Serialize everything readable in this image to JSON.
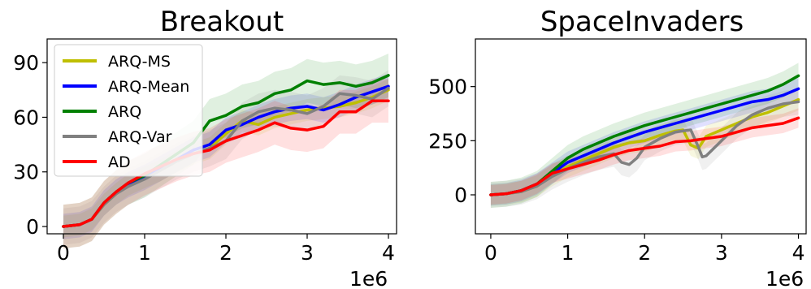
{
  "chart_data": [
    {
      "type": "line",
      "title": "Breakout",
      "xlabel": "",
      "ylabel": "",
      "x_scale_label": "1e6",
      "x_ticks": [
        "0",
        "1",
        "2",
        "3",
        "4"
      ],
      "y_ticks": [
        "0",
        "30",
        "60",
        "90"
      ],
      "xlim": [
        -0.2,
        4.1
      ],
      "ylim": [
        -4,
        103
      ],
      "grid": false,
      "legend": {
        "placement": "upper-left"
      },
      "series": [
        {
          "name": "ARQ-MS",
          "color": "#bfbf00",
          "shade": 6,
          "x": [
            0,
            0.2,
            0.35,
            0.5,
            0.65,
            0.8,
            1.0,
            1.2,
            1.4,
            1.6,
            1.8,
            2.0,
            2.2,
            2.4,
            2.6,
            2.8,
            3.0,
            3.2,
            3.4,
            3.6,
            3.8,
            4.0
          ],
          "y": [
            0,
            1,
            4,
            12,
            18,
            23,
            27,
            31,
            36,
            40,
            43,
            51,
            58,
            56,
            60,
            62,
            64,
            65,
            66,
            68,
            71,
            75
          ]
        },
        {
          "name": "ARQ-Mean",
          "color": "#0000ff",
          "shade": 7,
          "x": [
            0,
            0.2,
            0.35,
            0.5,
            0.65,
            0.8,
            1.0,
            1.2,
            1.4,
            1.6,
            1.8,
            2.0,
            2.2,
            2.4,
            2.6,
            2.8,
            3.0,
            3.2,
            3.4,
            3.6,
            3.8,
            4.0
          ],
          "y": [
            0,
            1,
            4,
            13,
            19,
            23,
            27,
            32,
            37,
            42,
            45,
            53,
            56,
            60,
            63,
            65,
            66,
            64,
            67,
            71,
            74,
            77
          ]
        },
        {
          "name": "ARQ",
          "color": "#008000",
          "shade": 12,
          "x": [
            0,
            0.2,
            0.35,
            0.5,
            0.65,
            0.8,
            1.0,
            1.2,
            1.4,
            1.6,
            1.8,
            2.0,
            2.2,
            2.4,
            2.6,
            2.8,
            3.0,
            3.2,
            3.4,
            3.6,
            3.8,
            4.0
          ],
          "y": [
            0,
            1,
            4,
            13,
            19,
            24,
            28,
            34,
            40,
            46,
            58,
            61,
            66,
            68,
            73,
            75,
            80,
            78,
            79,
            77,
            79,
            83
          ]
        },
        {
          "name": "ARQ-Var",
          "color": "#808080",
          "shade": 10,
          "x": [
            0,
            0.2,
            0.35,
            0.5,
            0.65,
            0.8,
            1.0,
            1.2,
            1.4,
            1.6,
            1.8,
            2.0,
            2.2,
            2.4,
            2.6,
            2.8,
            3.0,
            3.2,
            3.4,
            3.6,
            3.8,
            4.0
          ],
          "y": [
            0,
            1,
            4,
            12,
            18,
            22,
            26,
            31,
            36,
            40,
            43,
            47,
            58,
            63,
            65,
            64,
            62,
            66,
            73,
            72,
            70,
            76
          ]
        },
        {
          "name": "AD",
          "color": "#ff0000",
          "shade": 12,
          "x": [
            0,
            0.2,
            0.35,
            0.5,
            0.65,
            0.8,
            1.0,
            1.2,
            1.4,
            1.6,
            1.8,
            2.0,
            2.2,
            2.4,
            2.6,
            2.8,
            3.0,
            3.2,
            3.4,
            3.6,
            3.8,
            4.0
          ],
          "y": [
            0,
            1,
            4,
            13,
            19,
            24,
            29,
            33,
            37,
            40,
            42,
            47,
            50,
            53,
            57,
            54,
            53,
            55,
            63,
            63,
            69,
            69
          ]
        }
      ]
    },
    {
      "type": "line",
      "title": "SpaceInvaders",
      "xlabel": "",
      "ylabel": "",
      "x_scale_label": "1e6",
      "x_ticks": [
        "0",
        "1",
        "2",
        "3",
        "4"
      ],
      "y_ticks": [
        "0",
        "250",
        "500"
      ],
      "xlim": [
        -0.2,
        4.1
      ],
      "ylim": [
        -180,
        720
      ],
      "grid": false,
      "legend": null,
      "series": [
        {
          "name": "ARQ-MS",
          "color": "#bfbf00",
          "shade": 50,
          "x": [
            0,
            0.2,
            0.4,
            0.6,
            0.8,
            1.0,
            1.2,
            1.4,
            1.6,
            1.8,
            2.0,
            2.2,
            2.4,
            2.5,
            2.6,
            2.7,
            2.8,
            3.0,
            3.2,
            3.4,
            3.6,
            3.8,
            4.0
          ],
          "y": [
            0,
            5,
            15,
            40,
            90,
            130,
            160,
            190,
            220,
            240,
            250,
            275,
            295,
            300,
            230,
            215,
            270,
            300,
            330,
            360,
            380,
            410,
            440
          ]
        },
        {
          "name": "ARQ-Mean",
          "color": "#0000ff",
          "shade": 50,
          "x": [
            0,
            0.2,
            0.4,
            0.6,
            0.8,
            1.0,
            1.2,
            1.4,
            1.6,
            1.8,
            2.0,
            2.2,
            2.4,
            2.6,
            2.8,
            3.0,
            3.2,
            3.4,
            3.6,
            3.8,
            4.0
          ],
          "y": [
            0,
            5,
            20,
            50,
            100,
            150,
            180,
            210,
            240,
            265,
            290,
            310,
            330,
            350,
            370,
            390,
            410,
            430,
            440,
            460,
            490
          ]
        },
        {
          "name": "ARQ",
          "color": "#008000",
          "shade": 60,
          "x": [
            0,
            0.2,
            0.4,
            0.6,
            0.8,
            1.0,
            1.2,
            1.4,
            1.6,
            1.8,
            2.0,
            2.2,
            2.4,
            2.6,
            2.8,
            3.0,
            3.2,
            3.4,
            3.6,
            3.8,
            4.0
          ],
          "y": [
            0,
            5,
            20,
            50,
            110,
            170,
            210,
            240,
            270,
            295,
            320,
            340,
            360,
            380,
            400,
            420,
            440,
            460,
            480,
            510,
            550
          ]
        },
        {
          "name": "ARQ-Var",
          "color": "#808080",
          "shade": 60,
          "x": [
            0,
            0.2,
            0.4,
            0.6,
            0.8,
            1.0,
            1.2,
            1.4,
            1.6,
            1.7,
            1.8,
            1.9,
            2.0,
            2.2,
            2.4,
            2.6,
            2.7,
            2.75,
            2.8,
            3.0,
            3.2,
            3.4,
            3.6,
            3.8,
            4.0
          ],
          "y": [
            0,
            5,
            15,
            40,
            85,
            120,
            150,
            175,
            190,
            150,
            140,
            170,
            220,
            260,
            290,
            300,
            220,
            175,
            180,
            250,
            320,
            370,
            400,
            420,
            430
          ]
        },
        {
          "name": "AD",
          "color": "#ff0000",
          "shade": 45,
          "x": [
            0,
            0.2,
            0.4,
            0.6,
            0.8,
            1.0,
            1.2,
            1.4,
            1.6,
            1.8,
            2.0,
            2.2,
            2.4,
            2.6,
            2.8,
            3.0,
            3.2,
            3.4,
            3.6,
            3.8,
            4.0
          ],
          "y": [
            0,
            5,
            20,
            50,
            100,
            120,
            140,
            160,
            185,
            205,
            215,
            225,
            245,
            250,
            260,
            270,
            290,
            310,
            320,
            330,
            355
          ]
        }
      ]
    }
  ]
}
